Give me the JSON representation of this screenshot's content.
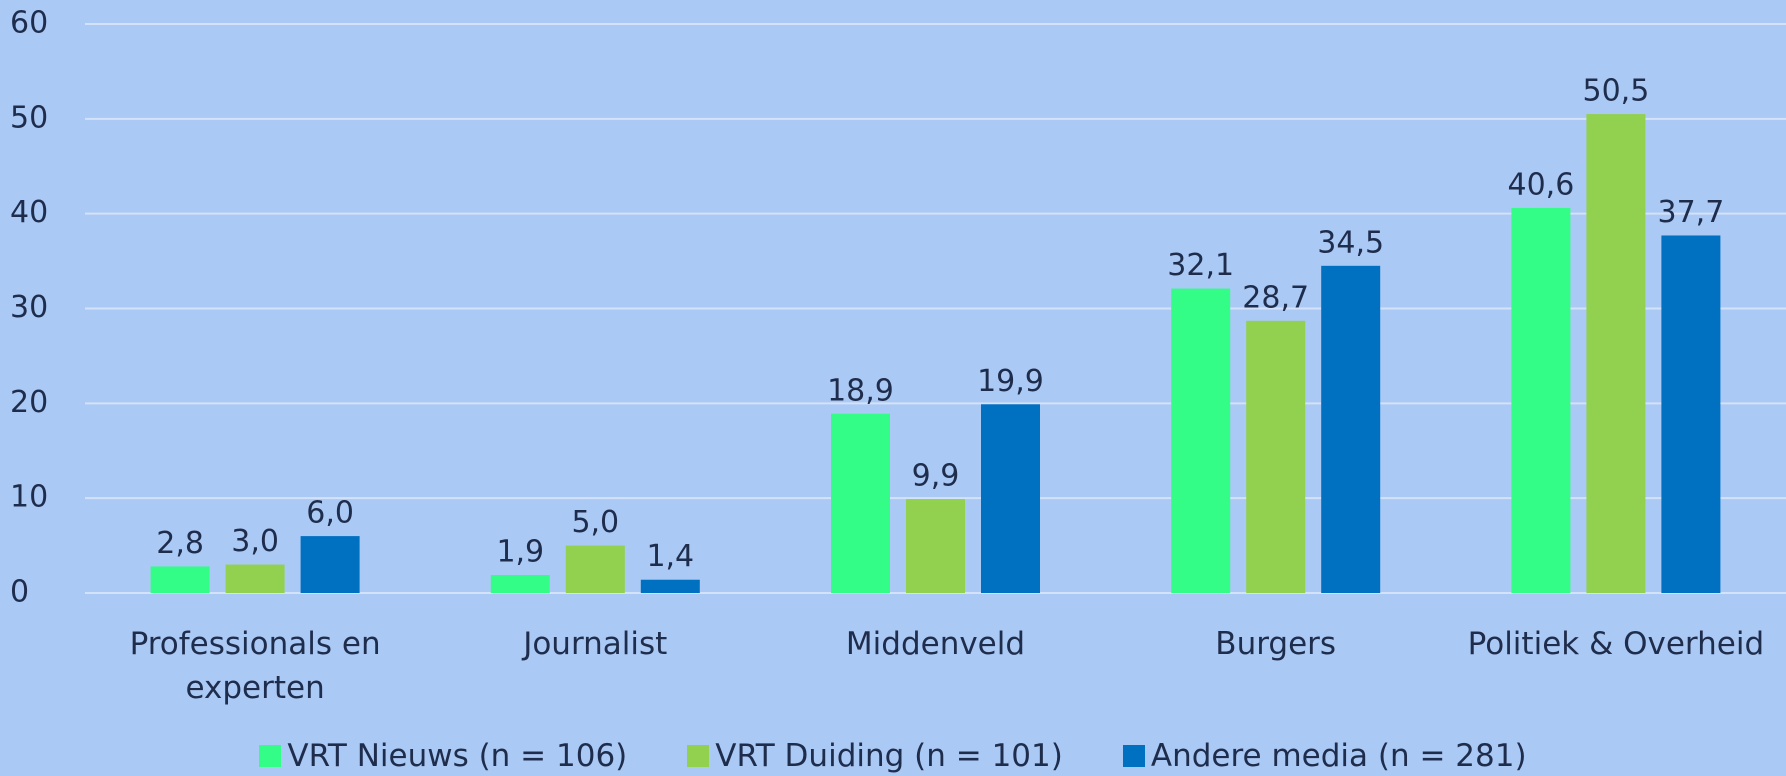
{
  "chart_data": {
    "type": "bar",
    "categories": [
      "Professionals en experten",
      "Journalist",
      "Middenveld",
      "Burgers",
      "Politiek & Overheid"
    ],
    "series": [
      {
        "name": "VRT Nieuws (n = 106)",
        "color": "#33fd87",
        "values": [
          2.8,
          1.9,
          18.9,
          32.1,
          40.6
        ],
        "value_labels": [
          "2,8",
          "1,9",
          "18,9",
          "32,1",
          "40,6"
        ]
      },
      {
        "name": "VRT Duiding (n = 101)",
        "color": "#92d050",
        "values": [
          3.0,
          5.0,
          9.9,
          28.7,
          50.5
        ],
        "value_labels": [
          "3,0",
          "5,0",
          "9,9",
          "28,7",
          "50,5"
        ]
      },
      {
        "name": "Andere media (n = 281)",
        "color": "#0070c0",
        "values": [
          6.0,
          1.4,
          19.9,
          34.5,
          37.7
        ],
        "value_labels": [
          "6,0",
          "1,4",
          "19,9",
          "34,5",
          "37,7"
        ]
      }
    ],
    "ylim": [
      0,
      60
    ],
    "yticks": [
      0,
      10,
      20,
      30,
      40,
      50,
      60
    ],
    "grid": true,
    "legend": "bottom"
  }
}
